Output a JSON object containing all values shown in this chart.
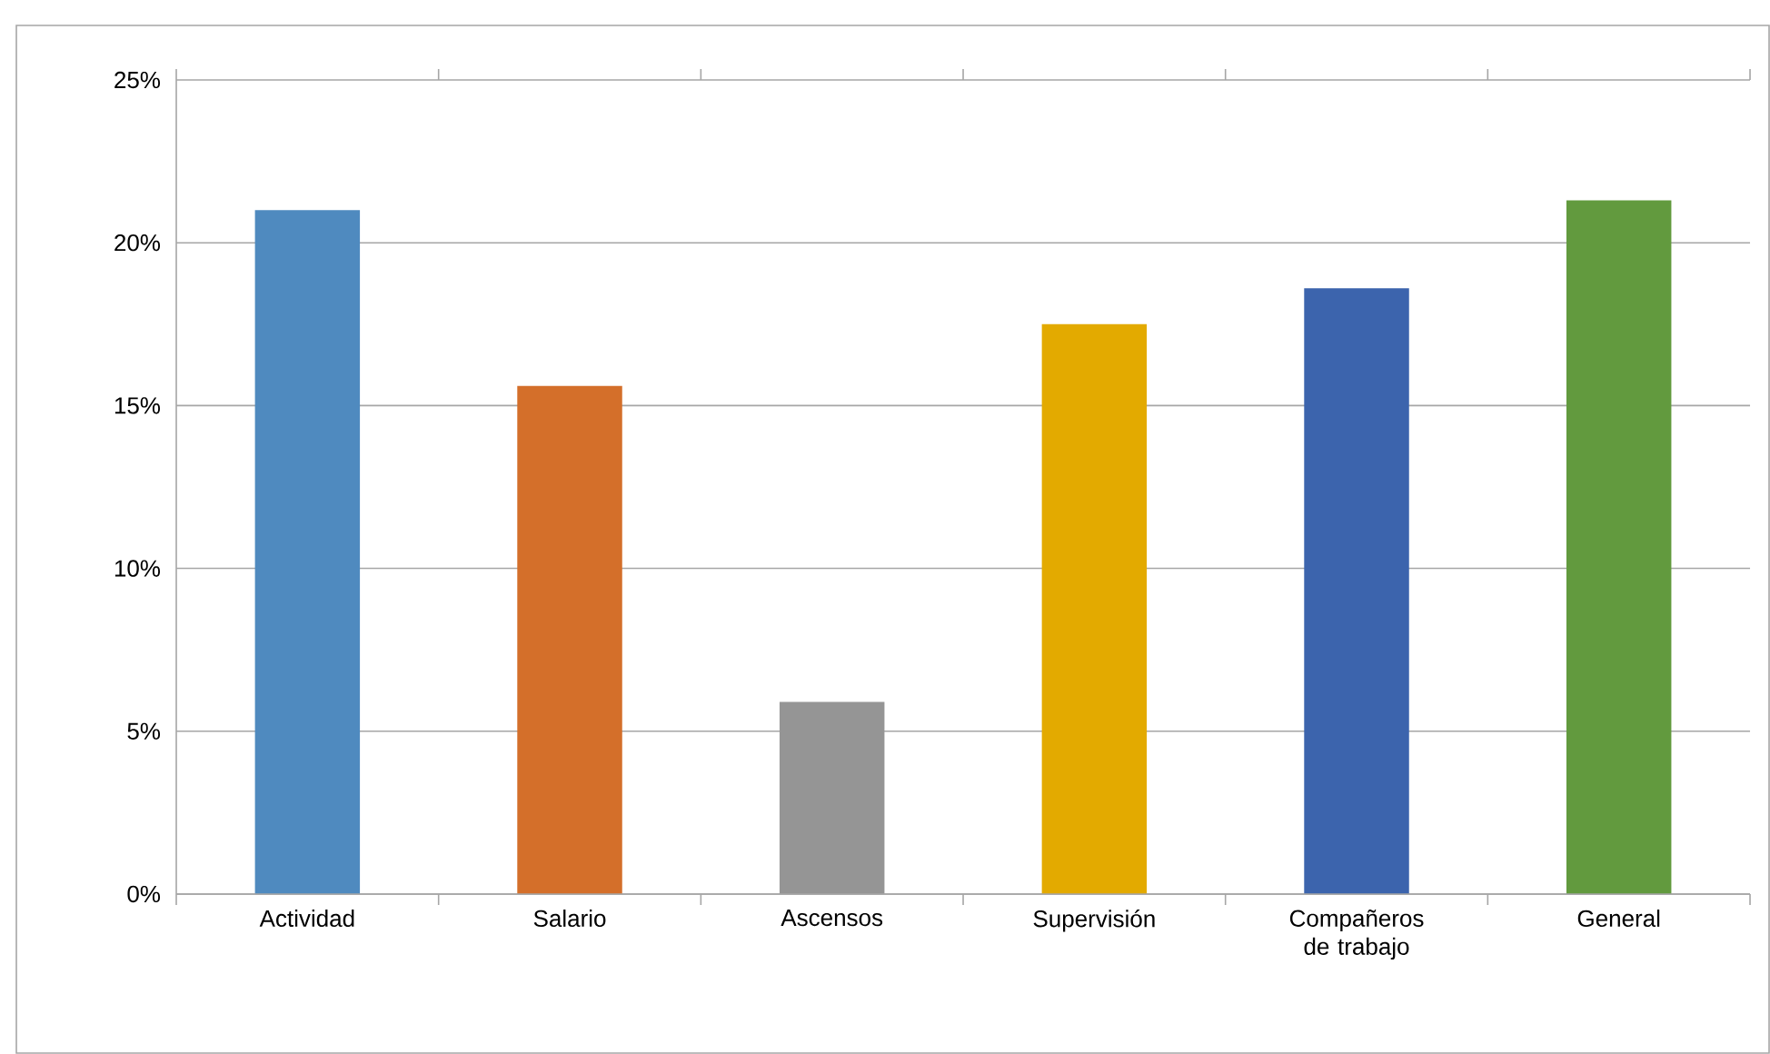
{
  "chart_data": {
    "type": "bar",
    "categories": [
      "Actividad",
      "Salario",
      "Ascensos",
      "Supervisión",
      "Compañeros de trabajo",
      "General"
    ],
    "values": [
      21.0,
      15.6,
      5.9,
      17.5,
      18.6,
      21.3
    ],
    "colors": [
      "#4f8abf",
      "#d46f2a",
      "#959595",
      "#e3aa00",
      "#3c64ad",
      "#629a3e"
    ],
    "ylim": [
      0,
      25
    ],
    "yticks": [
      {
        "value": 0,
        "label": "0%"
      },
      {
        "value": 5,
        "label": "5%"
      },
      {
        "value": 10,
        "label": "10%"
      },
      {
        "value": 15,
        "label": "15%"
      },
      {
        "value": 20,
        "label": "20%"
      },
      {
        "value": 25,
        "label": "25%"
      }
    ],
    "grid": "y"
  }
}
